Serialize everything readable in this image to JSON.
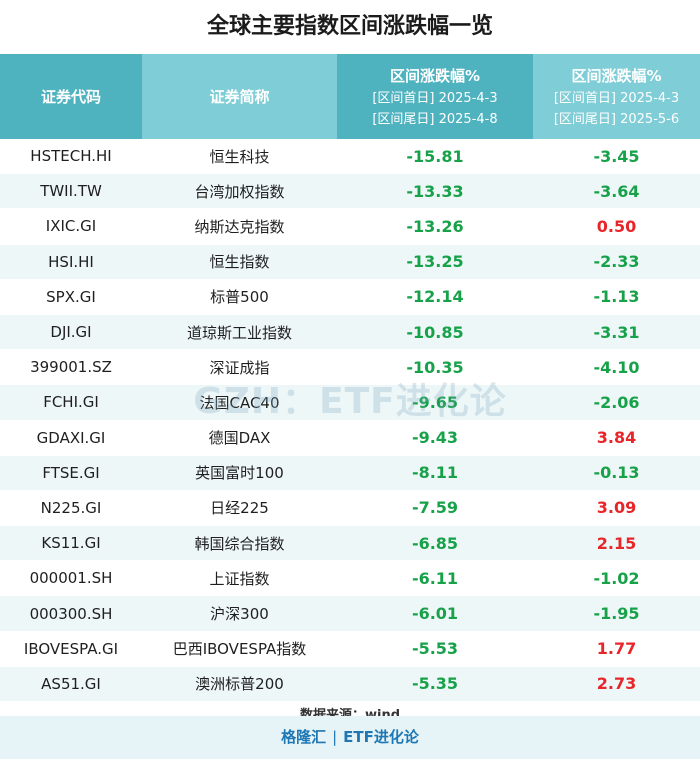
{
  "title": "全球主要指数区间涨跌幅一览",
  "header": {
    "code": "证券代码",
    "name": "证券简称",
    "col1": {
      "label": "区间涨跌幅%",
      "start": "[区间首日] 2025-4-3",
      "end": "[区间尾日] 2025-4-8"
    },
    "col2": {
      "label": "区间涨跌幅%",
      "start": "[区间首日] 2025-4-3",
      "end": "[区间尾日] 2025-5-6"
    }
  },
  "rows": [
    {
      "code": "HSTECH.HI",
      "name": "恒生科技",
      "v1": "-15.81",
      "v2": "-3.45"
    },
    {
      "code": "TWII.TW",
      "name": "台湾加权指数",
      "v1": "-13.33",
      "v2": "-3.64"
    },
    {
      "code": "IXIC.GI",
      "name": "纳斯达克指数",
      "v1": "-13.26",
      "v2": "0.50"
    },
    {
      "code": "HSI.HI",
      "name": "恒生指数",
      "v1": "-13.25",
      "v2": "-2.33"
    },
    {
      "code": "SPX.GI",
      "name": "标普500",
      "v1": "-12.14",
      "v2": "-1.13"
    },
    {
      "code": "DJI.GI",
      "name": "道琼斯工业指数",
      "v1": "-10.85",
      "v2": "-3.31"
    },
    {
      "code": "399001.SZ",
      "name": "深证成指",
      "v1": "-10.35",
      "v2": "-4.10"
    },
    {
      "code": "FCHI.GI",
      "name": "法国CAC40",
      "v1": "-9.65",
      "v2": "-2.06"
    },
    {
      "code": "GDAXI.GI",
      "name": "德国DAX",
      "v1": "-9.43",
      "v2": "3.84"
    },
    {
      "code": "FTSE.GI",
      "name": "英国富时100",
      "v1": "-8.11",
      "v2": "-0.13"
    },
    {
      "code": "N225.GI",
      "name": "日经225",
      "v1": "-7.59",
      "v2": "3.09"
    },
    {
      "code": "KS11.GI",
      "name": "韩国综合指数",
      "v1": "-6.85",
      "v2": "2.15"
    },
    {
      "code": "000001.SH",
      "name": "上证指数",
      "v1": "-6.11",
      "v2": "-1.02"
    },
    {
      "code": "000300.SH",
      "name": "沪深300",
      "v1": "-6.01",
      "v2": "-1.95"
    },
    {
      "code": "IBOVESPA.GI",
      "name": "巴西IBOVESPA指数",
      "v1": "-5.53",
      "v2": "1.77"
    },
    {
      "code": "AS51.GI",
      "name": "澳洲标普200",
      "v1": "-5.35",
      "v2": "2.73"
    }
  ],
  "source": "数据来源：wind",
  "watermark": "GZH：ETF进化论",
  "footer": {
    "left": "格隆汇",
    "separator": "|",
    "right": "ETF进化论"
  },
  "colors": {
    "negative": "#17a24a",
    "positive": "#e8262a",
    "header_dark": "#4fb2bf",
    "header_light": "#7fcdd6"
  }
}
